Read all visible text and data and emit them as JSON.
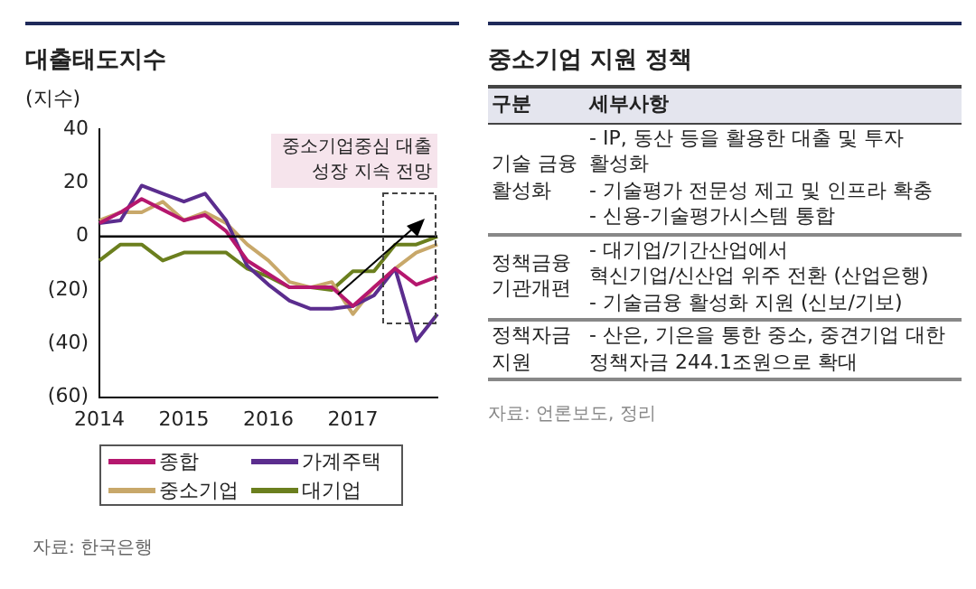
{
  "chart_data": [
    {
      "type": "line",
      "title": "대출태도지수",
      "ylabel": "(지수)",
      "categories": [
        "2014",
        null,
        null,
        null,
        "2015",
        null,
        null,
        null,
        "2016",
        null,
        null,
        null,
        "2017",
        null,
        null,
        null,
        null
      ],
      "series": [
        {
          "name": "종합",
          "color": "#b5176e",
          "values": [
            5,
            9,
            14,
            10,
            6,
            8,
            2,
            -9,
            -14,
            -19,
            -19,
            -19,
            -26,
            -19,
            -12,
            -18,
            -15
          ]
        },
        {
          "name": "가계주택",
          "color": "#5b2d8e",
          "values": [
            5,
            6,
            19,
            16,
            13,
            16,
            6,
            -11,
            -18,
            -24,
            -27,
            -27,
            -26,
            -22,
            -12,
            -39,
            -29
          ]
        },
        {
          "name": "중소기업",
          "color": "#c8a86a",
          "values": [
            6,
            9,
            9,
            13,
            6,
            9,
            5,
            -3,
            -9,
            -17,
            -19,
            -17,
            -29,
            -19,
            -12,
            -6,
            -3
          ]
        },
        {
          "name": "대기업",
          "color": "#6b7f1e",
          "values": [
            -9,
            -3,
            -3,
            -9,
            -6,
            -6,
            -6,
            -12,
            -15,
            -19,
            -19,
            -20,
            -13,
            -13,
            -3,
            -3,
            0
          ]
        }
      ],
      "ylim": [
        -60,
        40
      ],
      "yticks": [
        {
          "value": 40,
          "label": "40"
        },
        {
          "value": 20,
          "label": "20"
        },
        {
          "value": 0,
          "label": "0"
        },
        {
          "value": -20,
          "label": "(20)"
        },
        {
          "value": -40,
          "label": "(40)"
        },
        {
          "value": -60,
          "label": "(60)"
        }
      ],
      "ref_lines": [
        {
          "axis": "y",
          "value": 0,
          "color": "#000000"
        }
      ],
      "grid": false,
      "legend": "bottom",
      "marker": "none",
      "line_style": "solid",
      "annotations": [
        "중소기업중심 대출 성장 지속 전망",
        "자료: 한국은행"
      ]
    },
    {
      "type": "other",
      "title": "중소기업 지원 정책",
      "annotations": [
        "구분",
        "세부사항",
        "기술 금융 활성화",
        "- IP, 동산 등을 활용한 대출 및 투자 활성화\n- 기술평가 전문성 제고 및 인프라 확충\n- 신용-기술평가시스템 통합",
        "정책금융 기관개편",
        "- 대기업/기간산업에서\n혁신기업/신산업 위주 전환 (산업은행)\n- 기술금융 활성화 지원 (신보/기보)",
        "정책자금 지원",
        "- 산은, 기은을 통한 중소, 중견기업 대한 정책자금 244.1조원으로 확대",
        "자료: 언론보도, 정리"
      ]
    }
  ]
}
